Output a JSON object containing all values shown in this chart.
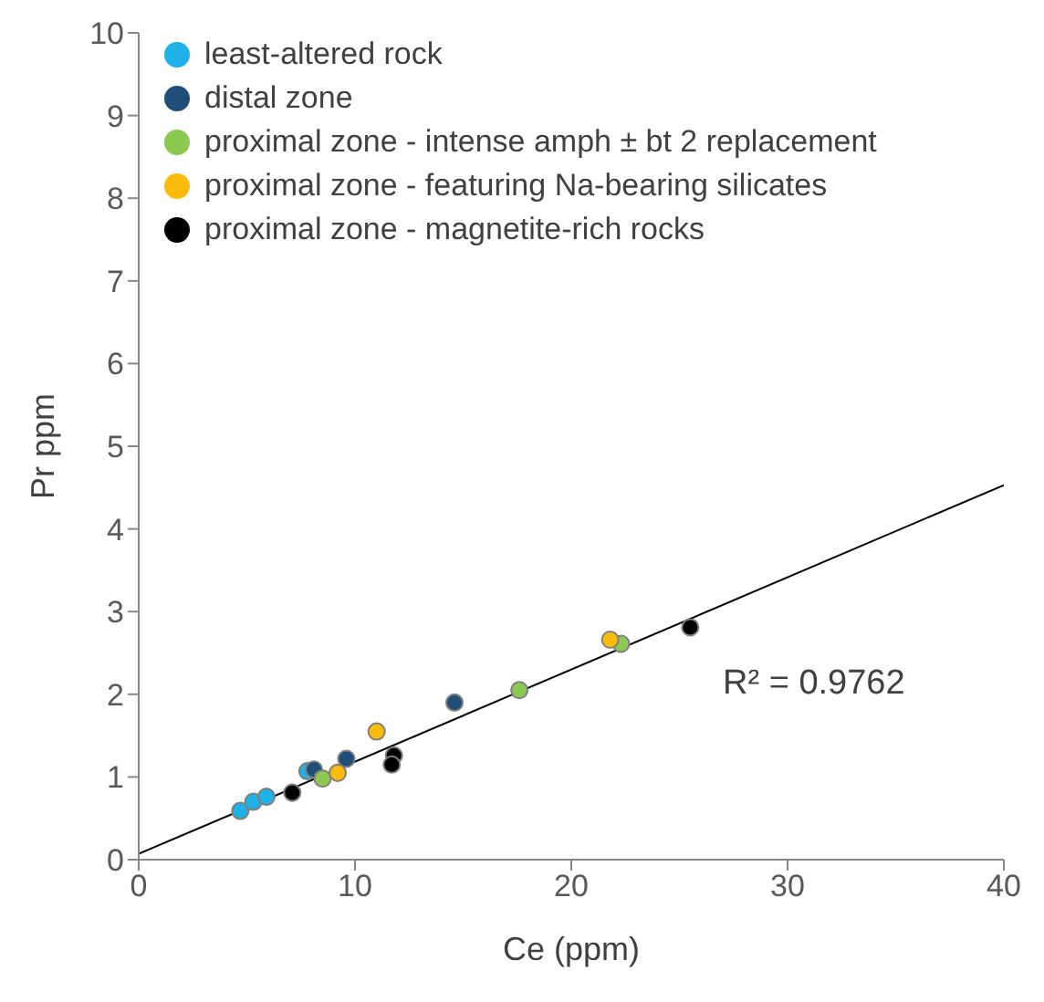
{
  "chart_data": {
    "type": "scatter",
    "xlabel": "Ce (ppm)",
    "ylabel": "Pr ppm",
    "xlim": [
      0,
      40
    ],
    "ylim": [
      0,
      10
    ],
    "xticks": [
      0,
      10,
      20,
      30,
      40
    ],
    "yticks": [
      0,
      1,
      2,
      3,
      4,
      5,
      6,
      7,
      8,
      9,
      10
    ],
    "grid": false,
    "legend": "top left",
    "marker": "circle",
    "annotations": [
      "R² = 0.9762"
    ],
    "series": [
      {
        "name": "least-altered rock",
        "color": "#1fb2e8",
        "x": [
          4.7,
          5.3,
          5.9,
          7.8
        ],
        "values": [
          0.59,
          0.7,
          0.76,
          1.07
        ]
      },
      {
        "name": "distal zone",
        "color": "#1f4e79",
        "x": [
          8.1,
          9.6,
          14.6
        ],
        "values": [
          1.09,
          1.22,
          1.9
        ]
      },
      {
        "name": "proximal zone - intense amph ± bt 2 replacement",
        "color": "#8cc950",
        "x": [
          8.5,
          17.6,
          22.3
        ],
        "values": [
          0.98,
          2.05,
          2.61
        ]
      },
      {
        "name": "proximal zone - featuring Na-bearing silicates",
        "color": "#fbbc09",
        "x": [
          9.2,
          11.0,
          21.8
        ],
        "values": [
          1.05,
          1.55,
          2.66
        ]
      },
      {
        "name": "proximal zone - magnetite-rich rocks",
        "color": "#000000",
        "x": [
          7.1,
          11.8,
          11.7,
          25.5
        ],
        "values": [
          0.81,
          1.26,
          1.15,
          2.81
        ]
      },
      {
        "type": "line",
        "marker": "none",
        "color": "#000000",
        "x": [
          0,
          40
        ],
        "values": [
          0.07,
          4.53
        ]
      }
    ]
  }
}
